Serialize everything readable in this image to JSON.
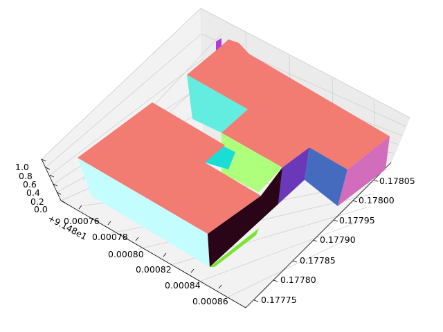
{
  "chart_data": {
    "type": "3d-extruded-polygons",
    "title": "",
    "xlabel": "",
    "ylabel": "",
    "zlabel": "",
    "x_offset": "+9.148e1",
    "x_ticks": [
      "0.00076",
      "0.00078",
      "0.00080",
      "0.00082",
      "0.00084",
      "0.00086"
    ],
    "y_ticks": [
      "0.17805",
      "0.17800",
      "0.17795",
      "0.17790",
      "0.17785",
      "0.17780",
      "0.17775"
    ],
    "z_ticks": [
      "1.0",
      "0.8",
      "0.6",
      "0.4",
      "0.2",
      "0.0"
    ],
    "zlim": [
      0,
      1
    ],
    "grid": true,
    "colors": {
      "top": "#F27B72",
      "left_block_side": "#C4FDFD",
      "dark_side": "#2A0518",
      "green_side": "#AEFF7C",
      "bright_green": "#7BE632",
      "cyan_side": "#62EDE0",
      "teal_notch": "#1ADDD6",
      "purple_side": "#6C38BA",
      "blue_side": "#456BBF",
      "pink_side": "#D16DBB",
      "magenta_bit": "#B03CE0"
    }
  }
}
